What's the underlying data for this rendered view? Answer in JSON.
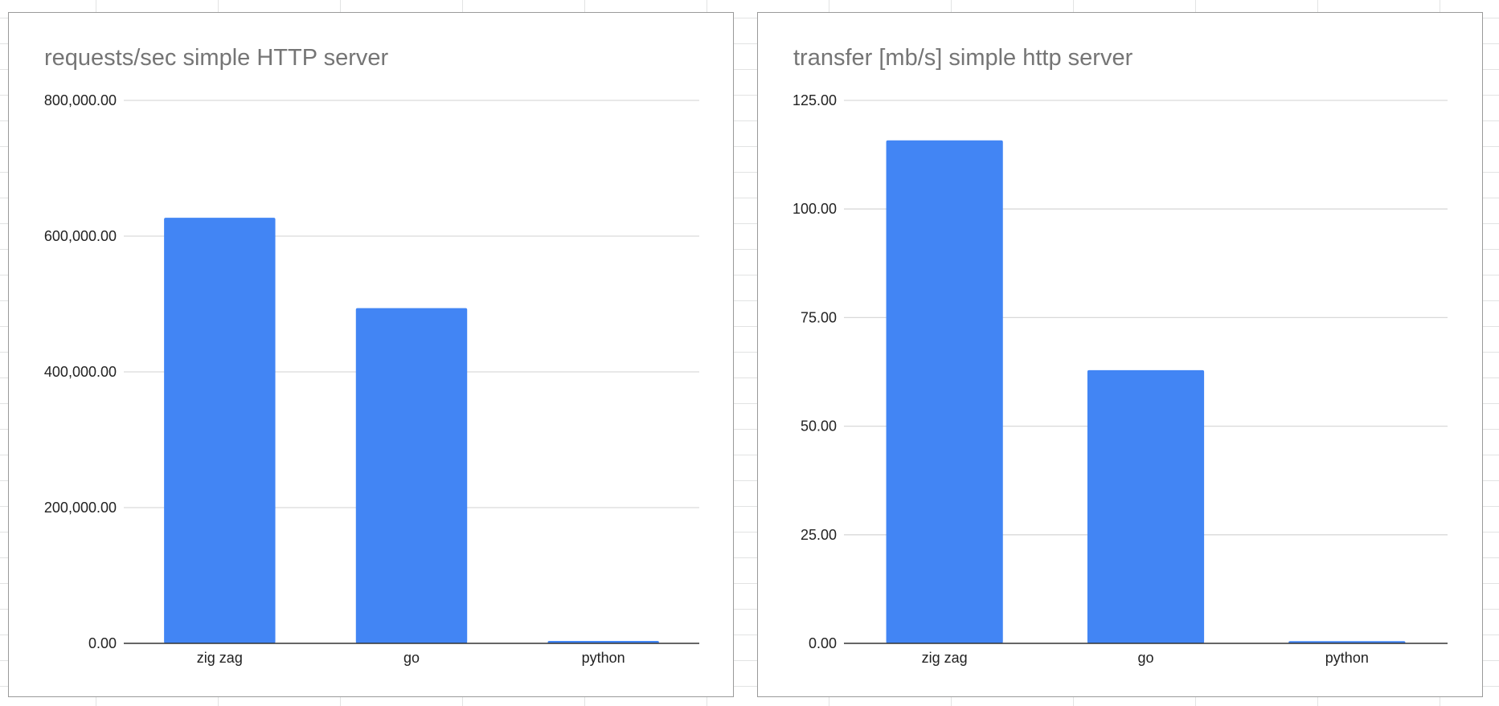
{
  "colors": {
    "bar": "#4285f4",
    "gridline": "#d9d9d9",
    "baseline": "#333333",
    "title": "#757575",
    "label": "#222222"
  },
  "charts": {
    "requests": {
      "title": "requests/sec simple HTTP server"
    },
    "transfer": {
      "title": "transfer [mb/s] simple http server"
    }
  },
  "chart_data": [
    {
      "type": "bar",
      "title": "requests/sec simple HTTP server",
      "xlabel": "",
      "ylabel": "",
      "categories": [
        "zig zag",
        "go",
        "python"
      ],
      "values": [
        627000,
        494000,
        3500
      ],
      "ylim": [
        0,
        800000
      ],
      "yticks": [
        0,
        200000,
        400000,
        600000,
        800000
      ],
      "ytick_labels": [
        "0.00",
        "200,000.00",
        "400,000.00",
        "600,000.00",
        "800,000.00"
      ],
      "grid": true,
      "legend": "none"
    },
    {
      "type": "bar",
      "title": "transfer [mb/s] simple http server",
      "xlabel": "",
      "ylabel": "",
      "categories": [
        "zig zag",
        "go",
        "python"
      ],
      "values": [
        115.8,
        62.9,
        0.5
      ],
      "ylim": [
        0,
        125
      ],
      "yticks": [
        0,
        25,
        50,
        75,
        100,
        125
      ],
      "ytick_labels": [
        "0.00",
        "25.00",
        "50.00",
        "75.00",
        "100.00",
        "125.00"
      ],
      "grid": true,
      "legend": "none"
    }
  ]
}
